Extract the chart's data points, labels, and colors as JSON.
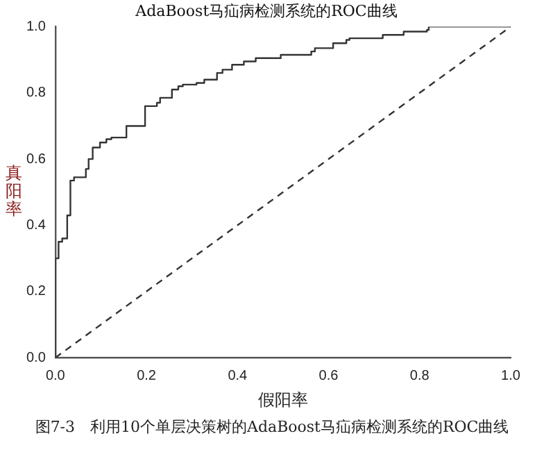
{
  "chart_data": {
    "type": "step",
    "title": "AdaBoost马疝病检测系统的ROC曲线",
    "xlabel": "假阳率",
    "ylabel": "真阳率",
    "annotations": [
      "图7-3　利用10个单层决策树的AdaBoost马疝病检测系统的ROC曲线"
    ],
    "xlim": [
      0,
      1
    ],
    "ylim": [
      0,
      1
    ],
    "xticks": [
      {
        "value": 0,
        "label": "0.0"
      },
      {
        "value": 0.2,
        "label": "0.2"
      },
      {
        "value": 0.4,
        "label": "0.4"
      },
      {
        "value": 0.6,
        "label": "0.6"
      },
      {
        "value": 0.8,
        "label": "0.8"
      },
      {
        "value": 1,
        "label": "1.0"
      }
    ],
    "yticks": [
      {
        "value": 0,
        "label": "0.0"
      },
      {
        "value": 0.2,
        "label": "0.2"
      },
      {
        "value": 0.4,
        "label": "0.4"
      },
      {
        "value": 0.6,
        "label": "0.6"
      },
      {
        "value": 0.8,
        "label": "0.8"
      },
      {
        "value": 1,
        "label": "1.0"
      }
    ],
    "grid": false,
    "legend": false,
    "series": [
      {
        "color": "#333333",
        "line_style": "solid",
        "x": [
          0,
          0,
          0.007,
          0.015,
          0.026,
          0.033,
          0.041,
          0.067,
          0.073,
          0.082,
          0.098,
          0.112,
          0.123,
          0.156,
          0.197,
          0.223,
          0.23,
          0.256,
          0.27,
          0.28,
          0.31,
          0.327,
          0.355,
          0.367,
          0.388,
          0.414,
          0.44,
          0.495,
          0.562,
          0.57,
          0.61,
          0.639,
          0.646,
          0.719,
          0.765,
          0.816,
          0.82,
          1
        ],
        "values": [
          0,
          0.3,
          0.35,
          0.36,
          0.43,
          0.535,
          0.545,
          0.57,
          0.6,
          0.635,
          0.65,
          0.66,
          0.665,
          0.7,
          0.76,
          0.77,
          0.785,
          0.81,
          0.82,
          0.825,
          0.83,
          0.84,
          0.86,
          0.87,
          0.885,
          0.895,
          0.905,
          0.915,
          0.925,
          0.935,
          0.95,
          0.96,
          0.965,
          0.975,
          0.985,
          0.99,
          1,
          1
        ]
      },
      {
        "type": "line",
        "color": "#333333",
        "line_style": "dashed",
        "x": [
          0,
          1
        ],
        "values": [
          0,
          1
        ]
      }
    ]
  }
}
